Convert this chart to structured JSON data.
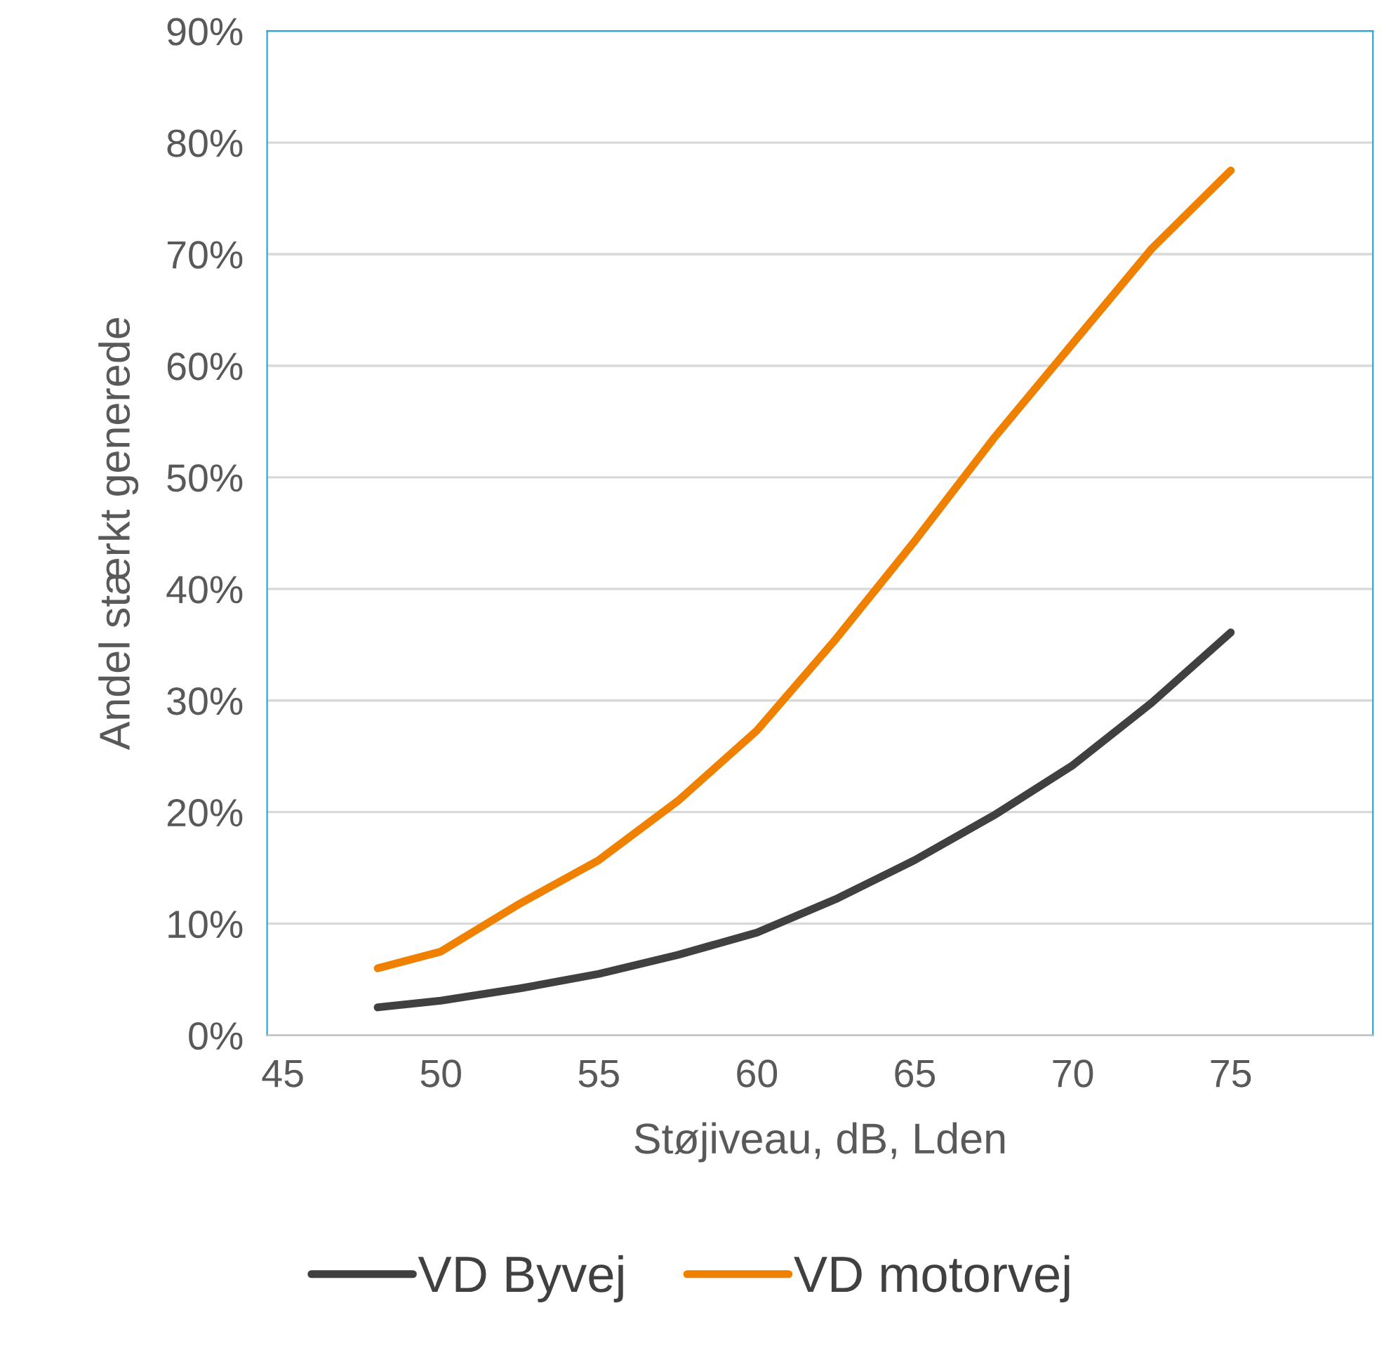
{
  "chart_data": {
    "type": "line",
    "xlabel": "Støjiveau, dB, Lden",
    "ylabel": "Andel stærkt generede",
    "x": [
      48,
      50,
      52.5,
      55,
      57.5,
      60,
      62.5,
      65,
      67.5,
      70,
      72.5,
      75
    ],
    "series": [
      {
        "name": "VD Byvej",
        "color": "#404040",
        "values": [
          2.5,
          3.1,
          4.2,
          5.5,
          7.2,
          9.2,
          12.2,
          15.7,
          19.7,
          24.2,
          29.8,
          36.1
        ]
      },
      {
        "name": "VD motorvej",
        "color": "#f08000",
        "values": [
          6.0,
          7.5,
          11.8,
          15.7,
          21,
          27.3,
          35.5,
          44.3,
          53.5,
          62,
          70.5,
          77.5
        ]
      }
    ],
    "xlim": [
      44.5,
      79.5
    ],
    "xticks": [
      45,
      50,
      55,
      60,
      65,
      70,
      75
    ],
    "ylim": [
      0,
      90
    ],
    "yticks": [
      {
        "value": 0,
        "label": "0%"
      },
      {
        "value": 10,
        "label": "10%"
      },
      {
        "value": 20,
        "label": "20%"
      },
      {
        "value": 30,
        "label": "30%"
      },
      {
        "value": 40,
        "label": "40%"
      },
      {
        "value": 50,
        "label": "50%"
      },
      {
        "value": 60,
        "label": "60%"
      },
      {
        "value": 70,
        "label": "70%"
      },
      {
        "value": 80,
        "label": "80%"
      },
      {
        "value": 90,
        "label": "90%"
      }
    ],
    "grid": "y",
    "legend": "bottom",
    "marker": "none",
    "line_style": "solid"
  }
}
